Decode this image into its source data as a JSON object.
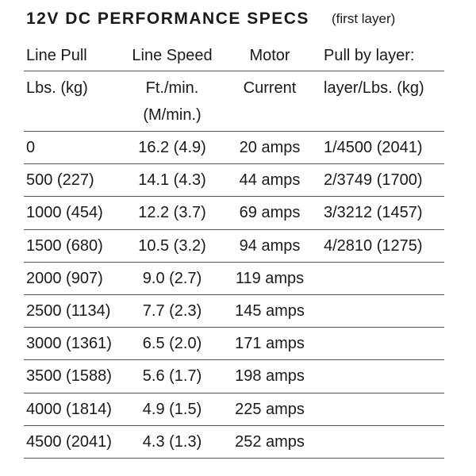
{
  "header": {
    "title": "12V DC PERFORMANCE SPECS",
    "subtitle": "(first layer)"
  },
  "table": {
    "columns": [
      {
        "heading": "Line Pull",
        "units": [
          "Lbs. (kg)"
        ]
      },
      {
        "heading": "Line Speed",
        "units": [
          "Ft./min.",
          "(M/min.)"
        ]
      },
      {
        "heading": "Motor",
        "units": [
          "Current"
        ]
      },
      {
        "heading": "Pull by layer:",
        "units": [
          "layer/Lbs. (kg)"
        ]
      }
    ],
    "rows": [
      [
        "0",
        "16.2 (4.9)",
        "20 amps",
        "1/4500 (2041)"
      ],
      [
        "500 (227)",
        "14.1 (4.3)",
        "44 amps",
        "2/3749 (1700)"
      ],
      [
        "1000 (454)",
        "12.2 (3.7)",
        "69 amps",
        "3/3212 (1457)"
      ],
      [
        "1500 (680)",
        "10.5 (3.2)",
        "94 amps",
        "4/2810 (1275)"
      ],
      [
        "2000 (907)",
        "9.0 (2.7)",
        "119 amps",
        null
      ],
      [
        "2500 (1134)",
        "7.7 (2.3)",
        "145 amps",
        null
      ],
      [
        "3000 (1361)",
        "6.5 (2.0)",
        "171 amps",
        null
      ],
      [
        "3500 (1588)",
        "5.6 (1.7)",
        "198 amps",
        null
      ],
      [
        "4000 (1814)",
        "4.9 (1.5)",
        "225 amps",
        null
      ],
      [
        "4500 (2041)",
        "4.3 (1.3)",
        "252 amps",
        null
      ]
    ]
  }
}
